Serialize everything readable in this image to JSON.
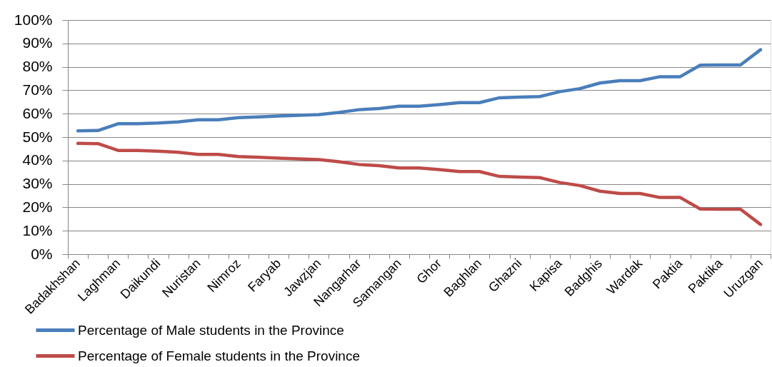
{
  "chart_data": {
    "type": "line",
    "categories": [
      "Badakhshan",
      null,
      "Laghman",
      null,
      "Daikundi",
      null,
      "Nuristan",
      null,
      "Nimroz",
      null,
      "Faryab",
      null,
      "Jawzjan",
      null,
      "Nangarhar",
      null,
      "Samangan",
      null,
      "Ghor",
      null,
      "Baghlan",
      null,
      "Ghazni",
      null,
      "Kapisa",
      null,
      "Badghis",
      null,
      "Wardak",
      null,
      "Paktia",
      null,
      "Paktika",
      null,
      "Uruzgan"
    ],
    "series": [
      {
        "name": "Percentage of  Male students in the Province",
        "color": "#4a7ebb",
        "values": [
          52.7,
          52.8,
          55.7,
          55.7,
          56.0,
          56.5,
          57.4,
          57.4,
          58.3,
          58.6,
          59.0,
          59.3,
          59.6,
          60.5,
          61.7,
          62.2,
          63.2,
          63.2,
          63.9,
          64.7,
          64.7,
          66.8,
          67.1,
          67.3,
          69.4,
          70.7,
          73.1,
          74.1,
          74.1,
          75.8,
          75.8,
          80.7,
          80.8,
          80.8,
          87.3
        ]
      },
      {
        "name": "Percentage of  Female students in the Province",
        "color": "#be4b48",
        "values": [
          47.3,
          47.2,
          44.3,
          44.3,
          44.0,
          43.5,
          42.6,
          42.6,
          41.7,
          41.4,
          41.0,
          40.7,
          40.4,
          39.5,
          38.3,
          37.8,
          36.8,
          36.8,
          36.1,
          35.3,
          35.3,
          33.2,
          32.9,
          32.7,
          30.6,
          29.3,
          26.9,
          25.9,
          25.9,
          24.2,
          24.2,
          19.3,
          19.2,
          19.2,
          12.7
        ]
      }
    ],
    "ylim": [
      0,
      100
    ],
    "yticks": [
      {
        "value": 0,
        "label": "0%"
      },
      {
        "value": 10,
        "label": "10%"
      },
      {
        "value": 20,
        "label": "20%"
      },
      {
        "value": 30,
        "label": "30%"
      },
      {
        "value": 40,
        "label": "40%"
      },
      {
        "value": 50,
        "label": "50%"
      },
      {
        "value": 60,
        "label": "60%"
      },
      {
        "value": 70,
        "label": "70%"
      },
      {
        "value": 80,
        "label": "80%"
      },
      {
        "value": 90,
        "label": "90%"
      },
      {
        "value": 100,
        "label": "100%"
      }
    ],
    "grid": "y",
    "legend": "bottom left"
  }
}
